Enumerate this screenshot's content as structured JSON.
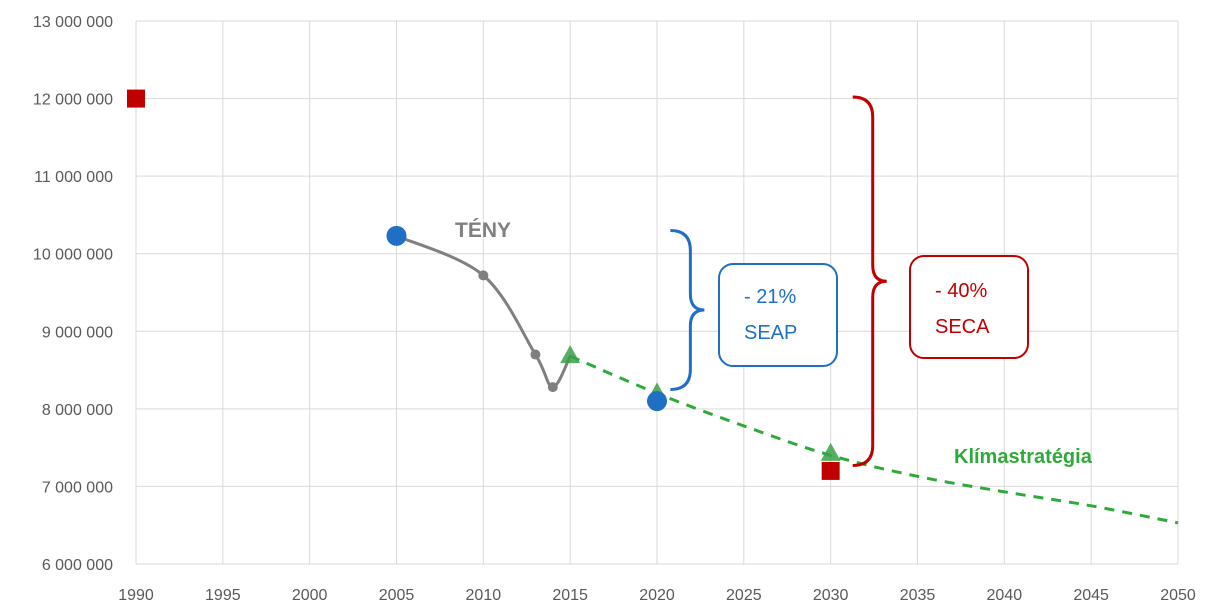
{
  "chart_data": {
    "type": "line",
    "title": "",
    "xlabel": "",
    "ylabel": "",
    "xlim": [
      1990,
      2050
    ],
    "ylim": [
      6000000,
      13000000
    ],
    "x_ticks": [
      1990,
      1995,
      2000,
      2005,
      2010,
      2015,
      2020,
      2025,
      2030,
      2035,
      2040,
      2045,
      2050
    ],
    "x_tick_labels": [
      "1990",
      "1995",
      "2000",
      "2005",
      "2010",
      "2015",
      "2020",
      "2025",
      "2030",
      "2035",
      "2040",
      "2045",
      "2050"
    ],
    "y_ticks": [
      6000000,
      7000000,
      8000000,
      9000000,
      10000000,
      11000000,
      12000000,
      13000000
    ],
    "y_tick_labels": [
      "6 000 000",
      "7 000 000",
      "8 000 000",
      "9 000 000",
      "10 000 000",
      "11 000 000",
      "12 000 000",
      "13 000 000"
    ],
    "grid": true,
    "legend": "none",
    "series": [
      {
        "name": "TÉNY",
        "color": "#808080",
        "style": "solid",
        "x": [
          2005,
          2010,
          2013,
          2014,
          2015
        ],
        "y": [
          10230000,
          9720000,
          8700000,
          8280000,
          8680000
        ]
      },
      {
        "name": "Klímastratégia",
        "color": "#2eaa3a",
        "style": "dashed",
        "x": [
          2015,
          2020,
          2025,
          2030,
          2035,
          2040,
          2045,
          2050
        ],
        "y": [
          8680000,
          8200000,
          7780000,
          7400000,
          7130000,
          6930000,
          6750000,
          6530000
        ]
      }
    ],
    "markers": [
      {
        "kind": "square",
        "color": "#c00000",
        "x": 1990,
        "y": 12000000
      },
      {
        "kind": "square",
        "color": "#c00000",
        "x": 2030,
        "y": 7200000
      },
      {
        "kind": "circle",
        "color": "#1f6fc5",
        "x": 2005,
        "y": 10230000
      },
      {
        "kind": "circle",
        "color": "#1f6fc5",
        "x": 2020,
        "y": 8100000
      },
      {
        "kind": "dot",
        "color": "#808080",
        "x": 2010,
        "y": 9720000
      },
      {
        "kind": "dot",
        "color": "#808080",
        "x": 2013,
        "y": 8700000
      },
      {
        "kind": "dot",
        "color": "#808080",
        "x": 2014,
        "y": 8280000
      },
      {
        "kind": "triangle",
        "color": "#3aa04a",
        "x": 2015,
        "y": 8680000
      },
      {
        "kind": "triangle",
        "color": "#3aa04a",
        "x": 2020,
        "y": 8200000
      },
      {
        "kind": "triangle",
        "color": "#3aa04a",
        "x": 2030,
        "y": 7420000
      }
    ],
    "annotations": {
      "teny_label": "TÉNY",
      "klima_label": "Klímastratégia",
      "seap_pct": "- 21%",
      "seap_name": "SEAP",
      "seca_pct": "- 40%",
      "seca_name": "SECA"
    },
    "colors": {
      "teny": "#808080",
      "klima": "#2eaa3a",
      "seap": "#1f6fc5",
      "seca": "#c00000",
      "grid": "#d9d9d9",
      "tick": "#595959"
    },
    "brackets": [
      {
        "name": "SEAP",
        "color": "#1f6fc5",
        "x": 2021,
        "y_from": 8250000,
        "y_to": 10300000
      },
      {
        "name": "SECA",
        "color": "#c00000",
        "x": 2031.5,
        "y_from": 7270000,
        "y_to": 12020000
      }
    ]
  }
}
